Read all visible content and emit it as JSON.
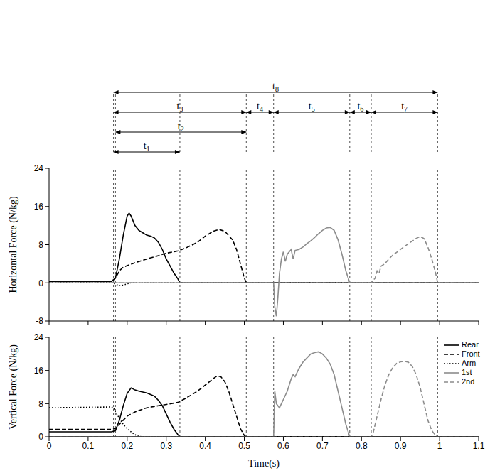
{
  "chart_data": [
    {
      "type": "line",
      "ylabel": "Horizontal  Force (N/kg)",
      "xlim": [
        0,
        1.1
      ],
      "xticks": [
        0,
        0.1,
        0.2,
        0.3,
        0.4,
        0.5,
        0.6,
        0.7,
        0.8,
        0.9,
        1,
        1.1
      ],
      "ylim": [
        -8,
        24
      ],
      "yticks": [
        -8,
        0,
        8,
        16,
        24
      ],
      "grid": false,
      "tick_labels": "y",
      "intervals": [
        {
          "label": "t1",
          "start": 0.165,
          "end": 0.335
        },
        {
          "label": "t2",
          "start": 0.17,
          "end": 0.505
        },
        {
          "label": "t3",
          "start": 0.165,
          "end": 0.505
        },
        {
          "label": "t4",
          "start": 0.505,
          "end": 0.575
        },
        {
          "label": "t5",
          "start": 0.575,
          "end": 0.77
        },
        {
          "label": "t6",
          "start": 0.77,
          "end": 0.825
        },
        {
          "label": "t7",
          "start": 0.825,
          "end": 0.995
        },
        {
          "label": "t8",
          "start": 0.165,
          "end": 0.995
        }
      ],
      "series": [
        {
          "name": "Rear",
          "color": "#000000",
          "line_style": "solid",
          "x": [
            0,
            0.16,
            0.17,
            0.18,
            0.19,
            0.2,
            0.205,
            0.21,
            0.22,
            0.23,
            0.24,
            0.25,
            0.26,
            0.27,
            0.28,
            0.29,
            0.3,
            0.31,
            0.32,
            0.33,
            0.335,
            1.1
          ],
          "values": [
            0.3,
            0.3,
            1,
            5,
            10,
            14,
            14.6,
            14,
            12,
            11,
            10.5,
            10,
            9.8,
            9.4,
            8.5,
            7,
            5,
            3.5,
            2,
            0.8,
            0,
            0
          ]
        },
        {
          "name": "Front",
          "color": "#000000",
          "line_style": "dashed",
          "x": [
            0,
            0.16,
            0.17,
            0.18,
            0.19,
            0.2,
            0.22,
            0.25,
            0.28,
            0.3,
            0.33,
            0.35,
            0.38,
            0.4,
            0.42,
            0.435,
            0.45,
            0.47,
            0.48,
            0.49,
            0.5,
            0.505,
            1.1
          ],
          "values": [
            0.3,
            0.3,
            1,
            2.5,
            3.3,
            3.6,
            4.2,
            5,
            5.7,
            6.2,
            6.7,
            7.3,
            8.5,
            9.8,
            10.8,
            11.2,
            10.8,
            9,
            7,
            4,
            1,
            0,
            0
          ]
        },
        {
          "name": "Arm",
          "color": "#000000",
          "line_style": "dotted",
          "x": [
            0,
            0.16,
            0.17,
            0.18,
            0.19,
            0.2,
            0.21,
            1.1
          ],
          "values": [
            0.2,
            0.2,
            -0.3,
            -0.6,
            -0.5,
            -0.2,
            0,
            0
          ]
        },
        {
          "name": "1st",
          "color": "#8c8c8c",
          "line_style": "solid",
          "x": [
            0,
            0.575,
            0.578,
            0.582,
            0.586,
            0.59,
            0.595,
            0.6,
            0.605,
            0.61,
            0.62,
            0.625,
            0.63,
            0.64,
            0.65,
            0.66,
            0.67,
            0.68,
            0.69,
            0.7,
            0.71,
            0.72,
            0.73,
            0.74,
            0.75,
            0.76,
            0.77,
            1.1
          ],
          "values": [
            0,
            0,
            -5,
            -7,
            -3,
            2,
            5,
            6.5,
            4.5,
            6,
            7,
            5,
            6.8,
            7,
            7.5,
            8.2,
            8.8,
            9.5,
            10.3,
            11,
            11.5,
            11.6,
            11,
            9,
            6,
            2.5,
            0,
            0
          ]
        },
        {
          "name": "2nd",
          "color": "#8c8c8c",
          "line_style": "dashed",
          "x": [
            0,
            0.825,
            0.835,
            0.84,
            0.845,
            0.85,
            0.86,
            0.87,
            0.88,
            0.9,
            0.92,
            0.94,
            0.95,
            0.96,
            0.97,
            0.98,
            0.99,
            0.995,
            1.1
          ],
          "values": [
            0,
            0,
            1,
            2.5,
            2,
            3.5,
            4,
            5,
            5.8,
            7,
            8.2,
            9.3,
            9.7,
            9.3,
            7.5,
            5,
            2,
            0,
            0
          ]
        }
      ]
    },
    {
      "type": "line",
      "ylabel": "Vertical  Force (N/kg)",
      "xlabel": "Time(s)",
      "xlim": [
        0,
        1.1
      ],
      "xticks": [
        0,
        0.1,
        0.2,
        0.3,
        0.4,
        0.5,
        0.6,
        0.7,
        0.8,
        0.9,
        1,
        1.1
      ],
      "ylim": [
        0,
        24
      ],
      "yticks": [
        0,
        8,
        16,
        24
      ],
      "grid": false,
      "legend": "upper right",
      "series": [
        {
          "name": "Rear",
          "color": "#000000",
          "line_style": "solid",
          "x": [
            0,
            0.16,
            0.17,
            0.18,
            0.19,
            0.2,
            0.21,
            0.22,
            0.23,
            0.24,
            0.25,
            0.26,
            0.27,
            0.28,
            0.29,
            0.3,
            0.31,
            0.32,
            0.33,
            0.335,
            1.1
          ],
          "values": [
            1.2,
            1.2,
            1.5,
            4,
            7.5,
            10.5,
            11.8,
            11.3,
            11,
            10.8,
            10.6,
            10.2,
            9.8,
            8.8,
            7.5,
            5.5,
            3.5,
            1.8,
            0.5,
            0,
            0
          ]
        },
        {
          "name": "Front",
          "color": "#000000",
          "line_style": "dashed",
          "x": [
            0,
            0.16,
            0.17,
            0.18,
            0.19,
            0.2,
            0.22,
            0.25,
            0.28,
            0.3,
            0.33,
            0.35,
            0.38,
            0.4,
            0.42,
            0.43,
            0.44,
            0.45,
            0.46,
            0.47,
            0.48,
            0.49,
            0.5,
            0.505,
            1.1
          ],
          "values": [
            1.8,
            1.8,
            2,
            3,
            4,
            5,
            6,
            7,
            7.5,
            7.8,
            8.3,
            9.3,
            11,
            12.5,
            14,
            14.7,
            14.5,
            13.3,
            11,
            8,
            5,
            2,
            0.3,
            0,
            0
          ]
        },
        {
          "name": "Arm",
          "color": "#000000",
          "line_style": "dotted",
          "x": [
            0,
            0.16,
            0.165,
            0.17,
            0.18,
            0.19,
            0.2,
            0.21,
            0.22,
            0.23,
            0.24,
            1.1
          ],
          "values": [
            7,
            7.2,
            7,
            6,
            4.5,
            3,
            2,
            1.2,
            0.5,
            0.1,
            0,
            0
          ]
        },
        {
          "name": "1st",
          "color": "#8c8c8c",
          "line_style": "solid",
          "x": [
            0,
            0.575,
            0.578,
            0.582,
            0.59,
            0.6,
            0.61,
            0.62,
            0.625,
            0.63,
            0.64,
            0.65,
            0.66,
            0.67,
            0.68,
            0.69,
            0.7,
            0.71,
            0.72,
            0.73,
            0.74,
            0.75,
            0.76,
            0.77,
            1.1
          ],
          "values": [
            0,
            0,
            11,
            8,
            7,
            9,
            11,
            14,
            15,
            14.5,
            16.5,
            18,
            19,
            20,
            20.3,
            20.5,
            20,
            19,
            17.5,
            15,
            11,
            7,
            3,
            0,
            0
          ]
        },
        {
          "name": "2nd",
          "color": "#8c8c8c",
          "line_style": "dashed",
          "x": [
            0,
            0.825,
            0.83,
            0.84,
            0.85,
            0.86,
            0.87,
            0.88,
            0.89,
            0.9,
            0.91,
            0.92,
            0.93,
            0.94,
            0.95,
            0.96,
            0.97,
            0.98,
            0.99,
            0.995,
            1.1
          ],
          "values": [
            0,
            0,
            1,
            5,
            9,
            12.5,
            15,
            16.7,
            17.7,
            18.1,
            18.2,
            18,
            17,
            15,
            12,
            8,
            4,
            1.5,
            0.3,
            0,
            0
          ]
        }
      ]
    }
  ]
}
